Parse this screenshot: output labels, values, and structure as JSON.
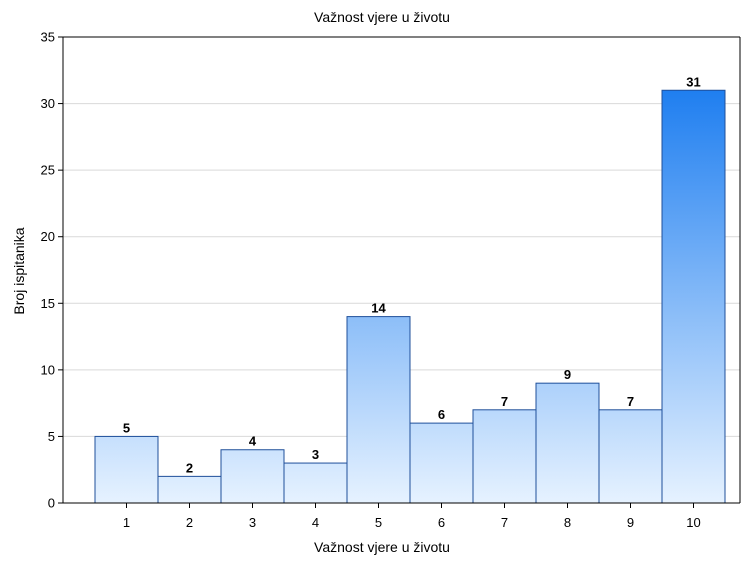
{
  "chart_data": {
    "type": "bar",
    "title": "Važnost vjere u životu",
    "xlabel": "Važnost vjere u životu",
    "ylabel": "Broj ispitanika",
    "categories": [
      "1",
      "2",
      "3",
      "4",
      "5",
      "6",
      "7",
      "8",
      "9",
      "10"
    ],
    "values": [
      5,
      2,
      4,
      3,
      14,
      6,
      7,
      9,
      7,
      31
    ],
    "data_labels": [
      "5",
      "2",
      "4",
      "3",
      "14",
      "6",
      "7",
      "9",
      "7",
      "31"
    ],
    "ylim": [
      0,
      35
    ],
    "yticks": [
      0,
      5,
      10,
      15,
      20,
      25,
      30,
      35
    ],
    "ytick_labels": [
      "0",
      "5",
      "10",
      "15",
      "20",
      "25",
      "30",
      "35"
    ],
    "grid": true,
    "legend": "none",
    "colors": {
      "bar_top": "#1e7ef0",
      "bar_bottom": "#e6f2ff",
      "bar_stroke": "#1f4f9a",
      "grid": "#d9d9d9",
      "axis": "#000000"
    }
  }
}
